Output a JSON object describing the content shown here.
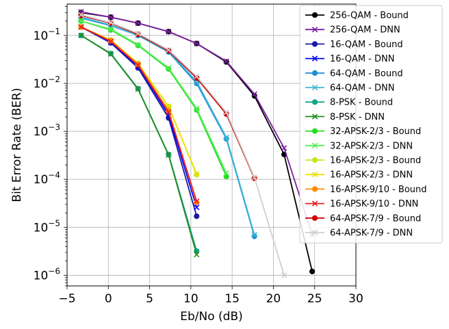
{
  "chart_data": {
    "type": "line",
    "title": "",
    "xlabel": "Eb/No (dB)",
    "ylabel": "Bit Error Rate (BER)",
    "xlim": [
      -5,
      30
    ],
    "ylim": [
      6e-07,
      0.45
    ],
    "yscale": "log",
    "grid": true,
    "legend_position": "top-right",
    "x_ticks": [
      -5,
      0,
      5,
      10,
      15,
      20,
      25,
      30
    ],
    "x_tick_labels": [
      "−5",
      "0",
      "5",
      "10",
      "15",
      "20",
      "25",
      "30"
    ],
    "y_ticks": [
      1e-06,
      1e-05,
      0.0001,
      0.001,
      0.01,
      0.1
    ],
    "y_tick_labels": [
      {
        "base": "10",
        "exp": "−6"
      },
      {
        "base": "10",
        "exp": "−5"
      },
      {
        "base": "10",
        "exp": "−4"
      },
      {
        "base": "10",
        "exp": "−3"
      },
      {
        "base": "10",
        "exp": "−2"
      },
      {
        "base": "10",
        "exp": "−1"
      }
    ],
    "series": [
      {
        "name": "256-QAM - Bound",
        "color": "#000000",
        "marker": "o",
        "x": [
          -3.3,
          0.3,
          3.6,
          7.3,
          10.7,
          14.3,
          17.7,
          21.3,
          24.7
        ],
        "y": [
          0.3,
          0.24,
          0.18,
          0.12,
          0.068,
          0.028,
          0.0055,
          0.00033,
          1.2e-06
        ]
      },
      {
        "name": "256-QAM - DNN",
        "color": "#7b1fa2",
        "marker": "x",
        "x": [
          -3.3,
          0.3,
          3.6,
          7.3,
          10.7,
          14.3,
          17.7,
          21.3,
          24.7
        ],
        "y": [
          0.31,
          0.24,
          0.18,
          0.12,
          0.068,
          0.029,
          0.006,
          0.00045,
          7e-06
        ]
      },
      {
        "name": "16-QAM - Bound",
        "color": "#1a1aa6",
        "marker": "o",
        "x": [
          -3.3,
          0.3,
          3.6,
          7.3,
          10.7
        ],
        "y": [
          0.15,
          0.07,
          0.021,
          0.0019,
          1.7e-05
        ]
      },
      {
        "name": "16-QAM - DNN",
        "color": "#0000ff",
        "marker": "x",
        "x": [
          -3.3,
          0.3,
          3.6,
          7.3,
          10.7
        ],
        "y": [
          0.15,
          0.072,
          0.023,
          0.0022,
          2.6e-05
        ]
      },
      {
        "name": "64-QAM - Bound",
        "color": "#1f8fd4",
        "marker": "o",
        "x": [
          -3.3,
          0.3,
          3.6,
          7.3,
          10.7,
          14.3,
          17.7
        ],
        "y": [
          0.23,
          0.16,
          0.1,
          0.045,
          0.01,
          0.0007,
          6.5e-06
        ]
      },
      {
        "name": "64-QAM - DNN",
        "color": "#3fb7d6",
        "marker": "x",
        "x": [
          -3.3,
          0.3,
          3.6,
          7.3,
          10.7,
          14.3,
          17.7
        ],
        "y": [
          0.24,
          0.165,
          0.1,
          0.047,
          0.011,
          0.00075,
          7e-06
        ]
      },
      {
        "name": "8-PSK - Bound",
        "color": "#17a589",
        "marker": "o",
        "x": [
          -3.3,
          0.3,
          3.6,
          7.3,
          10.7
        ],
        "y": [
          0.1,
          0.042,
          0.0078,
          0.00033,
          3.2e-06
        ]
      },
      {
        "name": "8-PSK - DNN",
        "color": "#228b22",
        "marker": "x",
        "x": [
          -3.3,
          0.3,
          3.6,
          7.3,
          10.7
        ],
        "y": [
          0.1,
          0.041,
          0.0076,
          0.00032,
          2.7e-06
        ]
      },
      {
        "name": "32-APSK-2/3 - Bound",
        "color": "#22dd22",
        "marker": "o",
        "x": [
          -3.3,
          0.3,
          3.6,
          7.3,
          10.7,
          14.3
        ],
        "y": [
          0.2,
          0.13,
          0.062,
          0.02,
          0.0028,
          0.000115
        ]
      },
      {
        "name": "32-APSK-2/3 - DNN",
        "color": "#55ee55",
        "marker": "x",
        "x": [
          -3.3,
          0.3,
          3.6,
          7.3,
          10.7,
          14.3
        ],
        "y": [
          0.2,
          0.135,
          0.064,
          0.021,
          0.003,
          0.000135
        ]
      },
      {
        "name": "16-APSK-2/3 - Bound",
        "color": "#c8e61e",
        "marker": "o",
        "x": [
          -3.3,
          0.3,
          3.6,
          7.3,
          10.7
        ],
        "y": [
          0.15,
          0.08,
          0.026,
          0.0033,
          0.000125
        ]
      },
      {
        "name": "16-APSK-2/3 - DNN",
        "color": "#f0e000",
        "marker": "x",
        "x": [
          -3.3,
          0.3,
          3.6,
          7.3,
          10.7
        ],
        "y": [
          0.15,
          0.08,
          0.026,
          0.0033,
          0.00013
        ]
      },
      {
        "name": "16-APSK-9/10 - Bound",
        "color": "#ff8c00",
        "marker": "o",
        "x": [
          -3.3,
          0.3,
          3.6,
          7.3,
          10.7
        ],
        "y": [
          0.15,
          0.078,
          0.025,
          0.0027,
          3.3e-05
        ]
      },
      {
        "name": "16-APSK-9/10 - DNN",
        "color": "#e82020",
        "marker": "x",
        "x": [
          -3.3,
          0.3,
          3.6,
          7.3,
          10.7
        ],
        "y": [
          0.15,
          0.075,
          0.024,
          0.0025,
          3.5e-05
        ]
      },
      {
        "name": "64-APSK-7/9 - Bound",
        "color": "#cc0000",
        "marker": "o",
        "x": [
          -3.3,
          0.3,
          3.6,
          7.3,
          10.7,
          14.3,
          17.7
        ],
        "y": [
          0.26,
          0.18,
          0.105,
          0.048,
          0.013,
          0.0023,
          0.000105
        ]
      },
      {
        "name": "64-APSK-7/9 - DNN",
        "color": "#cfcfcf",
        "marker": "x",
        "x": [
          -3.3,
          0.3,
          3.6,
          7.3,
          10.7,
          14.3,
          17.7,
          21.3
        ],
        "y": [
          0.27,
          0.185,
          0.11,
          0.05,
          0.014,
          0.0025,
          0.00011,
          1e-06
        ]
      }
    ]
  }
}
